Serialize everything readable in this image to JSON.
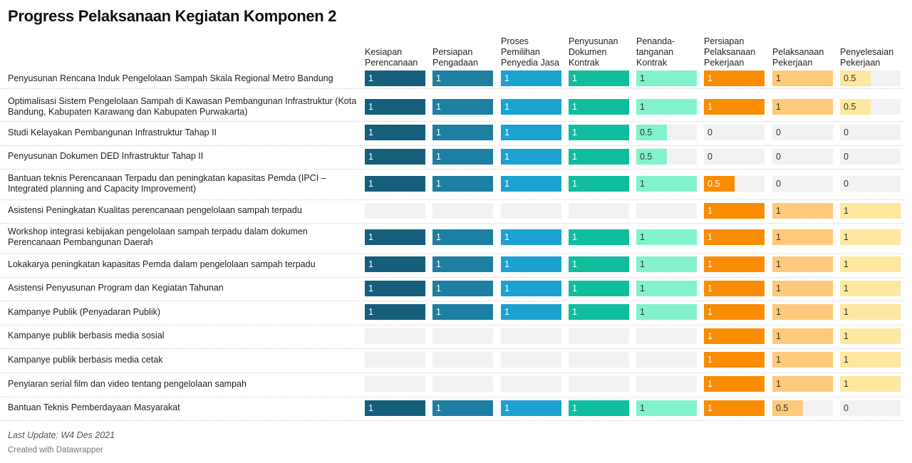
{
  "title": "Progress Pelaksanaan Kegiatan Komponen 2",
  "notes": "Last Update: W4 Des 2021",
  "credit": "Created with Datawrapper",
  "colors": {
    "bars": [
      "#155f7b",
      "#1d7fa1",
      "#1ba2d0",
      "#10bd9d",
      "#82f2cb",
      "#f98c00",
      "#fec97a",
      "#fee8a0"
    ],
    "empty": "#f2f2f2",
    "text_light": "#ffffff",
    "text_dark": "#333333"
  },
  "chart_data": {
    "type": "table",
    "columns": [
      [
        "Kesiapan",
        "Perencanaan"
      ],
      [
        "Persiapan",
        "Pengadaan"
      ],
      [
        "Proses",
        "Pemilihan",
        "Penyedia Jasa"
      ],
      [
        "Penyusunan",
        "Dokumen",
        "Kontrak"
      ],
      [
        "Penanda-",
        "tanganan",
        "Kontrak"
      ],
      [
        "Persiapan",
        "Pelaksanaan",
        "Pekerjaan"
      ],
      [
        "Pelaksanaan",
        "Pekerjaan"
      ],
      [
        "Penyelesaian",
        "Pekerjaan"
      ]
    ],
    "max_value": 1,
    "rows": [
      {
        "label": [
          "Penyusunan Rencana Induk Pengelolaan Sampah Skala Regional Metro Bandung"
        ],
        "values": [
          1,
          1,
          1,
          1,
          1,
          1,
          1,
          0.5
        ]
      },
      {
        "label": [
          "Optimalisasi Sistem Pengelolaan Sampah di Kawasan Pembangunan Infrastruktur (Kota",
          "Bandung, Kabupaten Karawang dan Kabupaten Purwakarta)"
        ],
        "values": [
          1,
          1,
          1,
          1,
          1,
          1,
          1,
          0.5
        ]
      },
      {
        "label": [
          "Studi Kelayakan Pembangunan Infrastruktur Tahap II"
        ],
        "values": [
          1,
          1,
          1,
          1,
          0.5,
          0,
          0,
          0
        ]
      },
      {
        "label": [
          "Penyusunan Dokumen DED Infrastruktur Tahap II"
        ],
        "values": [
          1,
          1,
          1,
          1,
          0.5,
          0,
          0,
          0
        ]
      },
      {
        "label": [
          "Bantuan teknis Perencanaan Terpadu dan peningkatan kapasitas Pemda (IPCI –",
          "Integrated planning and Capacity Improvement)"
        ],
        "values": [
          1,
          1,
          1,
          1,
          1,
          0.5,
          0,
          0
        ]
      },
      {
        "label": [
          "Asistensi Peningkatan Kualitas perencanaan pengelolaan sampah terpadu"
        ],
        "values": [
          null,
          null,
          null,
          null,
          null,
          1,
          1,
          1
        ]
      },
      {
        "label": [
          "Workshop integrasi kebijakan pengelolaan sampah terpadu dalam dokumen",
          "Perencanaan Pembangunan Daerah"
        ],
        "values": [
          1,
          1,
          1,
          1,
          1,
          1,
          1,
          1
        ]
      },
      {
        "label": [
          "Lokakarya peningkatan kapasitas Pemda dalam pengelolaan sampah terpadu"
        ],
        "values": [
          1,
          1,
          1,
          1,
          1,
          1,
          1,
          1
        ]
      },
      {
        "label": [
          "Asistensi Penyusunan Program dan Kegiatan Tahunan"
        ],
        "values": [
          1,
          1,
          1,
          1,
          1,
          1,
          1,
          1
        ]
      },
      {
        "label": [
          "Kampanye Publik (Penyadaran Publik)"
        ],
        "values": [
          1,
          1,
          1,
          1,
          1,
          1,
          1,
          1
        ]
      },
      {
        "label": [
          "Kampanye publik berbasis media sosial"
        ],
        "values": [
          null,
          null,
          null,
          null,
          null,
          1,
          1,
          1
        ]
      },
      {
        "label": [
          "Kampanye publik berbasis media cetak"
        ],
        "values": [
          null,
          null,
          null,
          null,
          null,
          1,
          1,
          1
        ]
      },
      {
        "label": [
          "Penyiaran serial film dan video tentang pengelolaan sampah"
        ],
        "values": [
          null,
          null,
          null,
          null,
          null,
          1,
          1,
          1
        ]
      },
      {
        "label": [
          "Bantuan Teknis Pemberdayaan Masyarakat"
        ],
        "values": [
          1,
          1,
          1,
          1,
          1,
          1,
          0.5,
          0
        ]
      }
    ]
  }
}
